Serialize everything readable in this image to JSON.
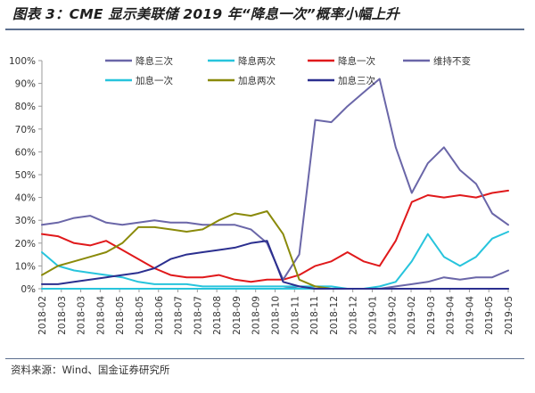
{
  "figure": {
    "title": "图表 3：CME 显示美联储 2019 年“降息一次”概率小幅上升",
    "source": "资料来源：Wind、国金证券研究所"
  },
  "chart_data": {
    "type": "line",
    "title": "CME 显示美联储 2019 年“降息一次”概率小幅上升",
    "xlabel": "",
    "ylabel": "",
    "ylim": [
      0,
      100
    ],
    "yticks": [
      "0%",
      "10%",
      "20%",
      "30%",
      "40%",
      "50%",
      "60%",
      "70%",
      "80%",
      "90%",
      "100%"
    ],
    "xticks": [
      "2018-02",
      "2018-03",
      "2018-03",
      "2018-04",
      "2018-05",
      "2018-05",
      "2018-06",
      "2018-07",
      "2018-07",
      "2018-08",
      "2018-09",
      "2018-09",
      "2018-10",
      "2018-11",
      "2018-11",
      "2018-12",
      "2018-12",
      "2019-01",
      "2019-02",
      "2019-02",
      "2019-03",
      "2019-04",
      "2019-04",
      "2019-05",
      "2019-05"
    ],
    "grid": false,
    "legend_position": "top",
    "series": [
      {
        "name": "降息三次",
        "color": "#6a66a8",
        "values": [
          0,
          0,
          0,
          0,
          0,
          0,
          0,
          0,
          0,
          0,
          0,
          0,
          0,
          0,
          0,
          0,
          1,
          0,
          0,
          0,
          0,
          0,
          1,
          2,
          3,
          5,
          4,
          5,
          5,
          8
        ]
      },
      {
        "name": "降息两次",
        "color": "#27c4dc",
        "values": [
          0,
          0,
          0,
          0,
          0,
          0,
          0,
          0,
          0,
          0,
          0,
          0,
          0,
          0,
          0,
          0,
          0,
          0,
          0,
          0,
          0,
          1,
          3,
          12,
          24,
          14,
          10,
          14,
          22,
          25
        ]
      },
      {
        "name": "降息一次",
        "color": "#e0191b",
        "values": [
          24,
          23,
          20,
          19,
          21,
          17,
          13,
          9,
          6,
          5,
          5,
          6,
          4,
          3,
          4,
          4,
          6,
          10,
          12,
          16,
          12,
          10,
          21,
          38,
          41,
          40,
          41,
          40,
          42,
          43
        ]
      },
      {
        "name": "维持不变",
        "color": "#6a66a8",
        "values": [
          28,
          29,
          31,
          32,
          29,
          28,
          29,
          30,
          29,
          29,
          28,
          28,
          28,
          26,
          20,
          4,
          15,
          74,
          73,
          80,
          86,
          92,
          62,
          42,
          55,
          62,
          52,
          46,
          33,
          28
        ]
      },
      {
        "name": "加息一次",
        "color": "#27c4dc",
        "values": [
          16,
          10,
          8,
          7,
          6,
          5,
          3,
          2,
          2,
          2,
          1,
          1,
          1,
          1,
          1,
          1,
          1,
          1,
          1,
          0,
          0,
          0,
          0,
          0,
          0,
          0,
          0,
          0,
          0,
          0
        ]
      },
      {
        "name": "加息两次",
        "color": "#8a8a0a",
        "values": [
          6,
          10,
          12,
          14,
          16,
          20,
          27,
          27,
          26,
          25,
          26,
          30,
          33,
          32,
          34,
          24,
          4,
          1,
          0,
          0,
          0,
          0,
          0,
          0,
          0,
          0,
          0,
          0,
          0,
          0
        ]
      },
      {
        "name": "加息三次",
        "color": "#2b2f8f",
        "values": [
          2,
          2,
          3,
          4,
          5,
          6,
          7,
          9,
          13,
          15,
          16,
          17,
          18,
          20,
          21,
          3,
          1,
          0,
          0,
          0,
          0,
          0,
          0,
          0,
          0,
          0,
          0,
          0,
          0,
          0
        ]
      }
    ]
  }
}
